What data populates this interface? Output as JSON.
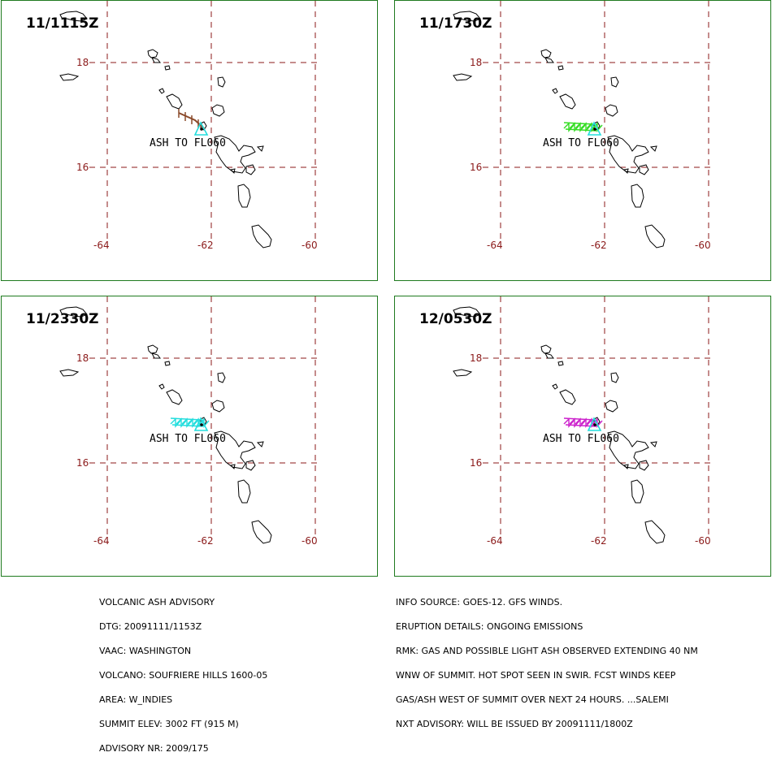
{
  "panels": [
    {
      "time": "11/1115Z",
      "ash_label": "ASH TO FL060",
      "plume_color": "#8b4a2b",
      "plume_type": "line"
    },
    {
      "time": "11/1730Z",
      "ash_label": "ASH TO FL060",
      "plume_color": "#33dd22",
      "plume_type": "hatch"
    },
    {
      "time": "11/2330Z",
      "ash_label": "ASH TO FL060",
      "plume_color": "#22dddd",
      "plume_type": "hatch"
    },
    {
      "time": "12/0530Z",
      "ash_label": "ASH TO FL060",
      "plume_color": "#cc22cc",
      "plume_type": "hatch"
    }
  ],
  "map": {
    "lat_labels": [
      "18",
      "16"
    ],
    "lon_labels": [
      "-64",
      "-62",
      "-60"
    ],
    "grid_color": "#8b1a1a",
    "volcano_marker_color": "#22dddd"
  },
  "advisory_left": [
    "VOLCANIC ASH ADVISORY",
    "DTG: 20091111/1153Z",
    "VAAC: WASHINGTON",
    "VOLCANO: SOUFRIERE HILLS 1600-05",
    "AREA: W_INDIES",
    "SUMMIT ELEV: 3002 FT (915 M)",
    "ADVISORY NR: 2009/175"
  ],
  "advisory_right": [
    "INFO SOURCE: GOES-12. GFS WINDS.",
    "ERUPTION DETAILS: ONGOING EMISSIONS",
    "RMK: GAS AND POSSIBLE LIGHT ASH OBSERVED EXTENDING 40 NM",
    "WNW OF SUMMIT. HOT SPOT SEEN IN SWIR. FCST WINDS KEEP",
    "GAS/ASH WEST OF SUMMIT OVER NEXT 24 HOURS. ...SALEMI",
    "NXT ADVISORY: WILL BE ISSUED BY 20091111/1800Z"
  ]
}
